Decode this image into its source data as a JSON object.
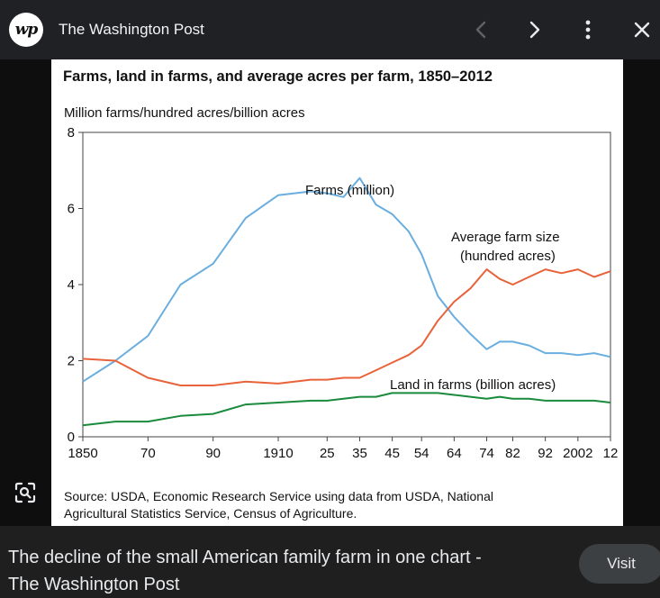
{
  "header": {
    "logo_text": "wp",
    "site_title": "The Washington Post",
    "icons": [
      "chevron-left-icon",
      "chevron-right-icon",
      "more-vert-icon",
      "close-icon"
    ]
  },
  "chart_data": {
    "type": "line",
    "title": "Farms, land in farms, and average acres per farm, 1850–2012",
    "ylabel": "Million farms/hundred acres/billion acres",
    "xlabel": "",
    "ylim": [
      0,
      8
    ],
    "xlim": [
      1850,
      2012
    ],
    "y_ticks": [
      "0",
      "2",
      "4",
      "6",
      "8"
    ],
    "x_ticks": [
      {
        "year": 1850,
        "label": "1850"
      },
      {
        "year": 1870,
        "label": "70"
      },
      {
        "year": 1890,
        "label": "90"
      },
      {
        "year": 1910,
        "label": "1910"
      },
      {
        "year": 1925,
        "label": "25"
      },
      {
        "year": 1935,
        "label": "35"
      },
      {
        "year": 1945,
        "label": "45"
      },
      {
        "year": 1954,
        "label": "54"
      },
      {
        "year": 1964,
        "label": "64"
      },
      {
        "year": 1974,
        "label": "74"
      },
      {
        "year": 1982,
        "label": "82"
      },
      {
        "year": 1992,
        "label": "92"
      },
      {
        "year": 2002,
        "label": "2002"
      },
      {
        "year": 2012,
        "label": "12"
      }
    ],
    "series": [
      {
        "name": "Farms (million)",
        "color": "#6aaedf",
        "x": [
          1850,
          1860,
          1870,
          1880,
          1890,
          1900,
          1910,
          1920,
          1925,
          1930,
          1935,
          1940,
          1945,
          1950,
          1954,
          1959,
          1964,
          1969,
          1974,
          1978,
          1982,
          1987,
          1992,
          1997,
          2002,
          2007,
          2012
        ],
        "values": [
          1.45,
          2.0,
          2.65,
          4.0,
          4.55,
          5.75,
          6.35,
          6.45,
          6.4,
          6.3,
          6.8,
          6.1,
          5.85,
          5.4,
          4.8,
          3.7,
          3.15,
          2.7,
          2.3,
          2.5,
          2.5,
          2.4,
          2.2,
          2.2,
          2.15,
          2.2,
          2.1
        ]
      },
      {
        "name": "Average farm size (hundred acres)",
        "color": "#e8623a",
        "x": [
          1850,
          1860,
          1870,
          1880,
          1890,
          1900,
          1910,
          1920,
          1925,
          1930,
          1935,
          1940,
          1945,
          1950,
          1954,
          1959,
          1964,
          1969,
          1974,
          1978,
          1982,
          1987,
          1992,
          1997,
          2002,
          2007,
          2012
        ],
        "values": [
          2.05,
          2.0,
          1.55,
          1.35,
          1.35,
          1.45,
          1.4,
          1.5,
          1.5,
          1.55,
          1.55,
          1.75,
          1.95,
          2.15,
          2.4,
          3.05,
          3.55,
          3.9,
          4.4,
          4.15,
          4.0,
          4.2,
          4.4,
          4.3,
          4.4,
          4.2,
          4.35
        ]
      },
      {
        "name": "Land in farms (billion acres)",
        "color": "#1a8a3c",
        "x": [
          1850,
          1860,
          1870,
          1880,
          1890,
          1900,
          1910,
          1920,
          1925,
          1930,
          1935,
          1940,
          1945,
          1950,
          1954,
          1959,
          1964,
          1969,
          1974,
          1978,
          1982,
          1987,
          1992,
          1997,
          2002,
          2007,
          2012
        ],
        "values": [
          0.3,
          0.4,
          0.4,
          0.55,
          0.6,
          0.85,
          0.9,
          0.95,
          0.95,
          1.0,
          1.05,
          1.05,
          1.15,
          1.15,
          1.15,
          1.15,
          1.1,
          1.05,
          1.0,
          1.05,
          1.0,
          1.0,
          0.95,
          0.95,
          0.95,
          0.95,
          0.9
        ]
      }
    ],
    "annotations": {
      "farms": "Farms (million)",
      "avg_size_line1": "Average farm size",
      "avg_size_line2": "(hundred acres)",
      "land": "Land in farms (billion acres)"
    },
    "source_line1": "Source: USDA, Economic Research Service using data from USDA, National",
    "source_line2": "Agricultural Statistics Service, Census of Agriculture."
  },
  "footer": {
    "caption_line1": "The decline of the small American family farm in one chart -",
    "caption_line2": "The Washington Post",
    "visit_label": "Visit"
  }
}
